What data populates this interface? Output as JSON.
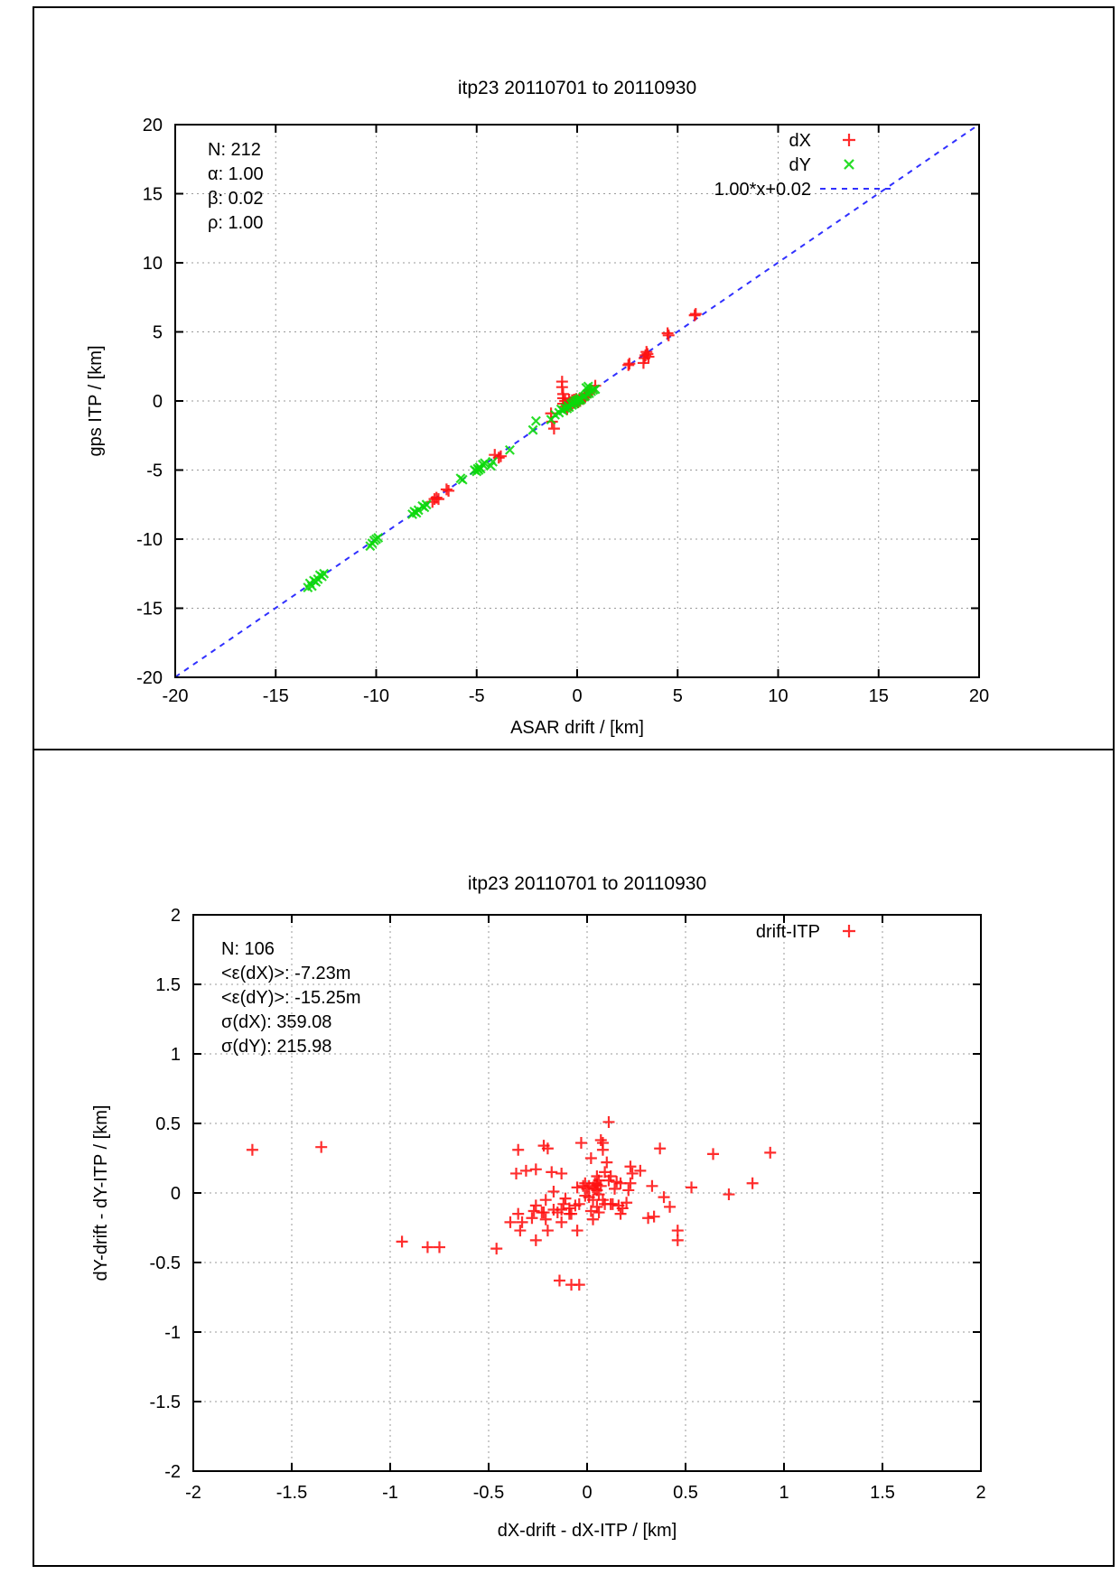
{
  "figure": {
    "panel_count": 2,
    "border_color": "#000000",
    "background": "#ffffff"
  },
  "colors": {
    "dx_red": "#ff1010",
    "dy_green": "#0ad80a",
    "fit_blue": "#3030ff",
    "grid_gray": "#9a9a9a",
    "frame_black": "#000000"
  },
  "chart_data": [
    {
      "type": "scatter",
      "title": "itp23 20110701 to 20110930",
      "xlabel": "ASAR drift / [km]",
      "ylabel": "gps ITP / [km]",
      "xlim": [
        -20,
        20
      ],
      "ylim": [
        -20,
        20
      ],
      "grid": true,
      "legend_position": "top-right-inside",
      "xticks": {
        "values": [
          -20,
          -15,
          -10,
          -5,
          0,
          5,
          10,
          15,
          20
        ],
        "labels": [
          "-20",
          "-15",
          "-10",
          "-5",
          "0",
          "5",
          "10",
          "15",
          "20"
        ]
      },
      "yticks": {
        "values": [
          -20,
          -15,
          -10,
          -5,
          0,
          5,
          10,
          15,
          20
        ],
        "labels": [
          "-20",
          "-15",
          "-10",
          "-5",
          "0",
          "5",
          "10",
          "15",
          "20"
        ]
      },
      "annotations": [
        "N: 212",
        "α: 1.00",
        "β: 0.02",
        "ρ: 1.00"
      ],
      "fit_line": {
        "label": "1.00*x+0.02",
        "slope": 1.0,
        "intercept": 0.02,
        "color": "#3030ff",
        "style": "dashed"
      },
      "series": [
        {
          "name": "dX",
          "marker": "plus",
          "color": "#ff1010",
          "points": [
            [
              -7.2,
              -7.3
            ],
            [
              -7.1,
              -7.1
            ],
            [
              -7.0,
              -7.0
            ],
            [
              -6.9,
              -7.1
            ],
            [
              -6.5,
              -6.4
            ],
            [
              -6.4,
              -6.5
            ],
            [
              -4.1,
              -3.9
            ],
            [
              -3.9,
              -4.1
            ],
            [
              -3.8,
              -4.0
            ],
            [
              -1.3,
              -0.9
            ],
            [
              -1.25,
              -1.5
            ],
            [
              -1.15,
              -2.0
            ],
            [
              -0.75,
              1.4
            ],
            [
              -0.75,
              1.0
            ],
            [
              -0.7,
              0.5
            ],
            [
              -0.7,
              0.2
            ],
            [
              -0.7,
              -0.2
            ],
            [
              -0.6,
              0.0
            ],
            [
              -0.55,
              -0.4
            ],
            [
              -0.5,
              -0.6
            ],
            [
              -0.45,
              -0.2
            ],
            [
              -0.4,
              0.1
            ],
            [
              -0.35,
              -0.1
            ],
            [
              -0.3,
              -0.3
            ],
            [
              -0.25,
              0.05
            ],
            [
              -0.2,
              -0.15
            ],
            [
              -0.15,
              0.1
            ],
            [
              -0.1,
              -0.05
            ],
            [
              -0.05,
              0.15
            ],
            [
              0.0,
              0.0
            ],
            [
              0.05,
              -0.1
            ],
            [
              0.1,
              0.1
            ],
            [
              0.15,
              0.0
            ],
            [
              0.2,
              0.2
            ],
            [
              0.3,
              0.15
            ],
            [
              0.4,
              0.3
            ],
            [
              0.5,
              0.45
            ],
            [
              0.6,
              0.6
            ],
            [
              0.7,
              0.75
            ],
            [
              0.9,
              1.1
            ],
            [
              2.55,
              2.6
            ],
            [
              2.6,
              2.7
            ],
            [
              3.3,
              2.75
            ],
            [
              3.35,
              3.1
            ],
            [
              3.4,
              3.3
            ],
            [
              3.45,
              3.55
            ],
            [
              3.5,
              3.4
            ],
            [
              3.55,
              3.2
            ],
            [
              4.5,
              4.9
            ],
            [
              4.55,
              4.75
            ],
            [
              5.85,
              6.2
            ],
            [
              5.9,
              6.3
            ]
          ]
        },
        {
          "name": "dY",
          "marker": "cross",
          "color": "#0ad80a",
          "points": [
            [
              -13.4,
              -13.5
            ],
            [
              -13.3,
              -13.2
            ],
            [
              -13.2,
              -13.4
            ],
            [
              -13.1,
              -13.0
            ],
            [
              -13.0,
              -13.1
            ],
            [
              -12.9,
              -12.9
            ],
            [
              -12.8,
              -12.6
            ],
            [
              -12.7,
              -12.7
            ],
            [
              -12.6,
              -12.5
            ],
            [
              -10.3,
              -10.5
            ],
            [
              -10.2,
              -10.3
            ],
            [
              -10.1,
              -10.1
            ],
            [
              -10.0,
              -10.0
            ],
            [
              -9.9,
              -9.9
            ],
            [
              -8.2,
              -8.2
            ],
            [
              -8.1,
              -8.0
            ],
            [
              -8.0,
              -8.1
            ],
            [
              -7.9,
              -7.9
            ],
            [
              -7.7,
              -7.6
            ],
            [
              -7.6,
              -7.7
            ],
            [
              -7.5,
              -7.5
            ],
            [
              -5.8,
              -5.6
            ],
            [
              -5.7,
              -5.7
            ],
            [
              -5.1,
              -5.0
            ],
            [
              -5.0,
              -5.1
            ],
            [
              -4.95,
              -4.9
            ],
            [
              -4.9,
              -5.0
            ],
            [
              -4.85,
              -4.8
            ],
            [
              -4.8,
              -4.9
            ],
            [
              -4.7,
              -4.6
            ],
            [
              -4.6,
              -4.5
            ],
            [
              -4.3,
              -4.7
            ],
            [
              -4.2,
              -4.4
            ],
            [
              -3.35,
              -3.55
            ],
            [
              -2.2,
              -2.1
            ],
            [
              -2.05,
              -1.45
            ],
            [
              -1.3,
              -1.35
            ],
            [
              -1.1,
              -1.0
            ],
            [
              -0.9,
              -0.85
            ],
            [
              -0.8,
              -0.6
            ],
            [
              -0.7,
              -0.7
            ],
            [
              -0.6,
              -0.5
            ],
            [
              -0.5,
              -0.55
            ],
            [
              -0.45,
              -0.35
            ],
            [
              -0.4,
              -0.45
            ],
            [
              -0.3,
              -0.2
            ],
            [
              -0.25,
              -0.3
            ],
            [
              -0.2,
              -0.1
            ],
            [
              -0.15,
              -0.2
            ],
            [
              -0.1,
              0.0
            ],
            [
              -0.05,
              -0.1
            ],
            [
              0.0,
              0.05
            ],
            [
              0.05,
              0.1
            ],
            [
              0.1,
              0.05
            ],
            [
              0.15,
              0.2
            ],
            [
              0.2,
              0.1
            ],
            [
              0.3,
              0.3
            ],
            [
              0.4,
              0.35
            ],
            [
              0.45,
              0.95
            ],
            [
              0.5,
              0.5
            ],
            [
              0.55,
              1.05
            ],
            [
              0.6,
              0.55
            ],
            [
              0.7,
              0.7
            ],
            [
              0.8,
              0.8
            ],
            [
              0.9,
              0.85
            ]
          ]
        }
      ]
    },
    {
      "type": "scatter",
      "title": "itp23 20110701 to 20110930",
      "xlabel": "dX-drift - dX-ITP / [km]",
      "ylabel": "dY-drift - dY-ITP / [km]",
      "xlim": [
        -2,
        2
      ],
      "ylim": [
        -2,
        2
      ],
      "grid": true,
      "legend_position": "top-right-inside",
      "xticks": {
        "values": [
          -2,
          -1.5,
          -1,
          -0.5,
          0,
          0.5,
          1,
          1.5,
          2
        ],
        "labels": [
          "-2",
          "-1.5",
          "-1",
          "-0.5",
          "0",
          "0.5",
          "1",
          "1.5",
          "2"
        ]
      },
      "yticks": {
        "values": [
          -2,
          -1.5,
          -1,
          -0.5,
          0,
          0.5,
          1,
          1.5,
          2
        ],
        "labels": [
          "-2",
          "-1.5",
          "-1",
          "-0.5",
          "0",
          "0.5",
          "1",
          "1.5",
          "2"
        ]
      },
      "annotations": [
        "N: 106",
        "<ε(dX)>:  -7.23m",
        "<ε(dY)>: -15.25m",
        "σ(dX):  359.08",
        "σ(dY):  215.98"
      ],
      "series": [
        {
          "name": "drift-ITP",
          "marker": "plus",
          "color": "#ff1010",
          "points": [
            [
              -1.7,
              0.31
            ],
            [
              -1.35,
              0.33
            ],
            [
              -0.94,
              -0.35
            ],
            [
              -0.81,
              -0.39
            ],
            [
              -0.75,
              -0.39
            ],
            [
              -0.46,
              -0.4
            ],
            [
              -0.39,
              -0.21
            ],
            [
              -0.36,
              0.14
            ],
            [
              -0.35,
              0.31
            ],
            [
              -0.35,
              -0.15
            ],
            [
              -0.34,
              -0.27
            ],
            [
              -0.33,
              -0.21
            ],
            [
              -0.31,
              0.16
            ],
            [
              -0.28,
              -0.18
            ],
            [
              -0.27,
              -0.13
            ],
            [
              -0.26,
              0.17
            ],
            [
              -0.26,
              -0.09
            ],
            [
              -0.26,
              -0.34
            ],
            [
              -0.23,
              -0.14
            ],
            [
              -0.22,
              0.34
            ],
            [
              -0.22,
              -0.14
            ],
            [
              -0.21,
              -0.05
            ],
            [
              -0.21,
              -0.19
            ],
            [
              -0.2,
              0.32
            ],
            [
              -0.2,
              -0.27
            ],
            [
              -0.18,
              0.15
            ],
            [
              -0.17,
              0.01
            ],
            [
              -0.17,
              -0.12
            ],
            [
              -0.15,
              -0.14
            ],
            [
              -0.14,
              -0.63
            ],
            [
              -0.13,
              0.14
            ],
            [
              -0.13,
              -0.12
            ],
            [
              -0.13,
              -0.21
            ],
            [
              -0.12,
              -0.08
            ],
            [
              -0.11,
              -0.04
            ],
            [
              -0.09,
              -0.15
            ],
            [
              -0.09,
              -0.11
            ],
            [
              -0.08,
              -0.66
            ],
            [
              -0.08,
              -0.15
            ],
            [
              -0.06,
              -0.09
            ],
            [
              -0.05,
              0.04
            ],
            [
              -0.05,
              -0.27
            ],
            [
              -0.04,
              -0.66
            ],
            [
              -0.04,
              -0.08
            ],
            [
              -0.03,
              0.36
            ],
            [
              -0.02,
              0.05
            ],
            [
              -0.01,
              0.07
            ],
            [
              -0.01,
              -0.02
            ],
            [
              0.0,
              0.03
            ],
            [
              0.01,
              0.05
            ],
            [
              0.01,
              -0.03
            ],
            [
              0.02,
              0.25
            ],
            [
              0.02,
              -0.13
            ],
            [
              0.03,
              0.04
            ],
            [
              0.03,
              -0.05
            ],
            [
              0.03,
              -0.19
            ],
            [
              0.04,
              0.07
            ],
            [
              0.04,
              0.03
            ],
            [
              0.05,
              0.12
            ],
            [
              0.05,
              0.06
            ],
            [
              0.05,
              0.02
            ],
            [
              0.05,
              -0.1
            ],
            [
              0.06,
              0.09
            ],
            [
              0.06,
              -0.01
            ],
            [
              0.06,
              -0.14
            ],
            [
              0.07,
              0.38
            ],
            [
              0.07,
              0.05
            ],
            [
              0.08,
              0.36
            ],
            [
              0.08,
              0.31
            ],
            [
              0.08,
              -0.05
            ],
            [
              0.09,
              0.15
            ],
            [
              0.09,
              -0.08
            ],
            [
              0.1,
              0.22
            ],
            [
              0.11,
              0.51
            ],
            [
              0.11,
              0.09
            ],
            [
              0.12,
              0.12
            ],
            [
              0.12,
              -0.08
            ],
            [
              0.13,
              -0.08
            ],
            [
              0.14,
              0.03
            ],
            [
              0.15,
              0.08
            ],
            [
              0.16,
              -0.09
            ],
            [
              0.17,
              0.07
            ],
            [
              0.17,
              -0.15
            ],
            [
              0.18,
              -0.11
            ],
            [
              0.2,
              -0.07
            ],
            [
              0.21,
              0.02
            ],
            [
              0.22,
              0.19
            ],
            [
              0.22,
              0.07
            ],
            [
              0.23,
              0.14
            ],
            [
              0.27,
              0.16
            ],
            [
              0.31,
              -0.18
            ],
            [
              0.33,
              0.05
            ],
            [
              0.34,
              -0.17
            ],
            [
              0.37,
              0.32
            ],
            [
              0.39,
              -0.03
            ],
            [
              0.42,
              -0.1
            ],
            [
              0.46,
              -0.27
            ],
            [
              0.46,
              -0.34
            ],
            [
              0.53,
              0.04
            ],
            [
              0.64,
              0.28
            ],
            [
              0.72,
              -0.01
            ],
            [
              0.84,
              0.07
            ],
            [
              0.93,
              0.29
            ]
          ]
        }
      ]
    }
  ]
}
